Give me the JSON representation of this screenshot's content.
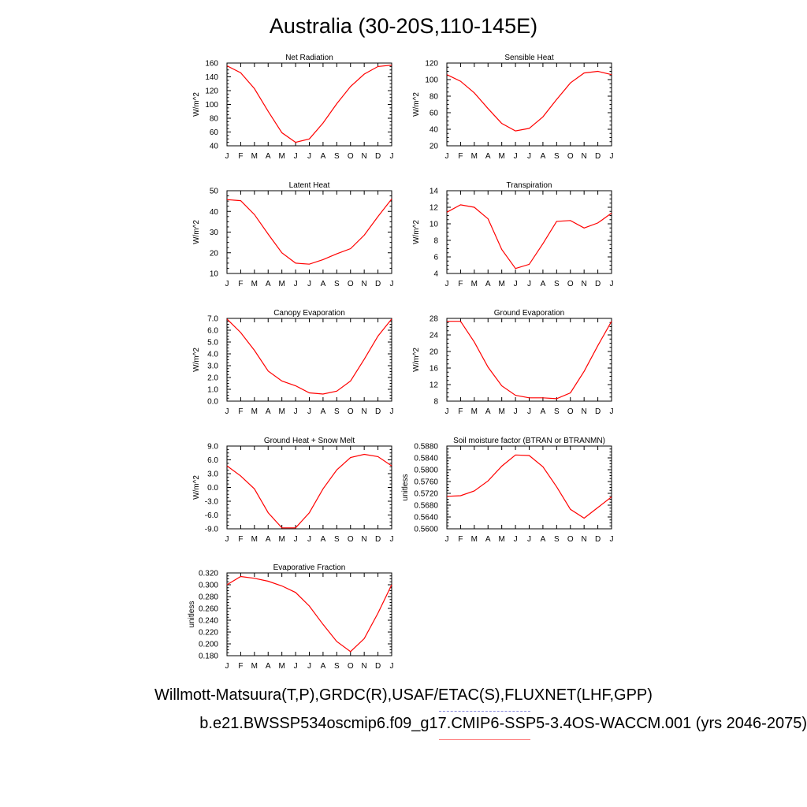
{
  "figure": {
    "title": "Australia (30-20S,110-145E)",
    "legend_obs": "Willmott-Matsuura(T,P),GRDC(R),USAF/ETAC(S),FLUXNET(LHF,GPP)",
    "legend_model": "b.e21.BWSSP534oscmip6.f09_g17.CMIP6-SSP5-3.4OS-WACCM.001 (yrs 2046-2075)",
    "colors": {
      "model_line": "#ff0000",
      "obs_sample": "#8a8adc",
      "model_sample": "#ff8080"
    }
  },
  "chart_data": [
    {
      "id": "net_radiation",
      "type": "line",
      "title": "Net Radiation",
      "ylabel": "W/m^2",
      "categories": [
        "J",
        "F",
        "M",
        "A",
        "M",
        "J",
        "J",
        "A",
        "S",
        "O",
        "N",
        "D",
        "J"
      ],
      "values": [
        156,
        146,
        123,
        90,
        59,
        45,
        50,
        73,
        101,
        126,
        144,
        155,
        157
      ],
      "ylim": [
        40,
        160
      ],
      "yticks": [
        40,
        60,
        80,
        100,
        120,
        140,
        160
      ],
      "ytick_labels": [
        "40",
        "60",
        "80",
        "100",
        "120",
        "140",
        "160"
      ]
    },
    {
      "id": "sensible_heat",
      "type": "line",
      "title": "Sensible Heat",
      "ylabel": "W/m^2",
      "categories": [
        "J",
        "F",
        "M",
        "A",
        "M",
        "J",
        "J",
        "A",
        "S",
        "O",
        "N",
        "D",
        "J"
      ],
      "values": [
        106,
        98,
        84,
        65,
        47,
        38,
        41,
        55,
        76,
        96,
        108,
        110,
        106
      ],
      "ylim": [
        20,
        120
      ],
      "yticks": [
        20,
        40,
        60,
        80,
        100,
        120
      ],
      "ytick_labels": [
        "20",
        "40",
        "60",
        "80",
        "100",
        "120"
      ]
    },
    {
      "id": "latent_heat",
      "type": "line",
      "title": "Latent Heat",
      "ylabel": "W/m^2",
      "categories": [
        "J",
        "F",
        "M",
        "A",
        "M",
        "J",
        "J",
        "A",
        "S",
        "O",
        "N",
        "D",
        "J"
      ],
      "values": [
        45.7,
        45.2,
        38.5,
        29.0,
        20.0,
        15.0,
        14.5,
        16.7,
        19.5,
        22.0,
        28.5,
        37.5,
        46.0
      ],
      "ylim": [
        10,
        50
      ],
      "yticks": [
        10,
        20,
        30,
        40,
        50
      ],
      "ytick_labels": [
        "10",
        "20",
        "30",
        "40",
        "50"
      ]
    },
    {
      "id": "transpiration",
      "type": "line",
      "title": "Transpiration",
      "ylabel": "W/m^2",
      "categories": [
        "J",
        "F",
        "M",
        "A",
        "M",
        "J",
        "J",
        "A",
        "S",
        "O",
        "N",
        "D",
        "J"
      ],
      "values": [
        11.4,
        12.3,
        12.0,
        10.6,
        6.9,
        4.6,
        5.1,
        7.6,
        10.3,
        10.4,
        9.5,
        10.1,
        11.3
      ],
      "ylim": [
        4,
        14
      ],
      "yticks": [
        4,
        6,
        8,
        10,
        12,
        14
      ],
      "ytick_labels": [
        "4",
        "6",
        "8",
        "10",
        "12",
        "14"
      ]
    },
    {
      "id": "canopy_evaporation",
      "type": "line",
      "title": "Canopy Evaporation",
      "ylabel": "W/m^2",
      "categories": [
        "J",
        "F",
        "M",
        "A",
        "M",
        "J",
        "J",
        "A",
        "S",
        "O",
        "N",
        "D",
        "J"
      ],
      "values": [
        6.95,
        5.8,
        4.3,
        2.55,
        1.7,
        1.3,
        0.7,
        0.6,
        0.85,
        1.7,
        3.55,
        5.5,
        6.95
      ],
      "ylim": [
        0,
        7
      ],
      "yticks": [
        0,
        1,
        2,
        3,
        4,
        5,
        6,
        7
      ],
      "ytick_labels": [
        "0.0",
        "1.0",
        "2.0",
        "3.0",
        "4.0",
        "5.0",
        "6.0",
        "7.0"
      ]
    },
    {
      "id": "ground_evaporation",
      "type": "line",
      "title": "Ground Evaporation",
      "ylabel": "W/m^2",
      "categories": [
        "J",
        "F",
        "M",
        "A",
        "M",
        "J",
        "J",
        "A",
        "S",
        "O",
        "N",
        "D",
        "J"
      ],
      "values": [
        27.3,
        27.3,
        22.3,
        16.2,
        11.7,
        9.4,
        8.8,
        8.8,
        8.6,
        10.0,
        15.2,
        21.4,
        27.3
      ],
      "ylim": [
        8,
        28
      ],
      "yticks": [
        8,
        12,
        16,
        20,
        24,
        28
      ],
      "ytick_labels": [
        "8",
        "12",
        "16",
        "20",
        "24",
        "28"
      ]
    },
    {
      "id": "ground_heat_snow_melt",
      "type": "line",
      "title": "Ground Heat + Snow Melt",
      "ylabel": "W/m^2",
      "categories": [
        "J",
        "F",
        "M",
        "A",
        "M",
        "J",
        "J",
        "A",
        "S",
        "O",
        "N",
        "D",
        "J"
      ],
      "values": [
        4.7,
        2.5,
        -0.3,
        -5.5,
        -8.8,
        -8.8,
        -5.5,
        -0.3,
        3.8,
        6.5,
        7.2,
        6.7,
        4.7
      ],
      "ylim": [
        -9,
        9
      ],
      "yticks": [
        -9,
        -6,
        -3,
        0,
        3,
        6,
        9
      ],
      "ytick_labels": [
        "-9.0",
        "-6.0",
        "-3.0",
        "0.0",
        "3.0",
        "6.0",
        "9.0"
      ]
    },
    {
      "id": "soil_moisture_factor",
      "type": "line",
      "title": "Soil moisture factor (BTRAN or BTRANMN)",
      "ylabel": "unitless",
      "categories": [
        "J",
        "F",
        "M",
        "A",
        "M",
        "J",
        "J",
        "A",
        "S",
        "O",
        "N",
        "D",
        "J"
      ],
      "values": [
        0.571,
        0.5712,
        0.5728,
        0.5762,
        0.5812,
        0.585,
        0.5848,
        0.581,
        0.5742,
        0.5666,
        0.5636,
        0.5672,
        0.5708
      ],
      "ylim": [
        0.56,
        0.588
      ],
      "yticks": [
        0.56,
        0.564,
        0.568,
        0.572,
        0.576,
        0.58,
        0.584,
        0.588
      ],
      "ytick_labels": [
        "0.5600",
        "0.5640",
        "0.5680",
        "0.5720",
        "0.5760",
        "0.5800",
        "0.5840",
        "0.5880"
      ]
    },
    {
      "id": "evaporative_fraction",
      "type": "line",
      "title": "Evaporative Fraction",
      "ylabel": "unitless",
      "categories": [
        "J",
        "F",
        "M",
        "A",
        "M",
        "J",
        "J",
        "A",
        "S",
        "O",
        "N",
        "D",
        "J"
      ],
      "values": [
        0.3,
        0.314,
        0.311,
        0.306,
        0.298,
        0.287,
        0.264,
        0.233,
        0.204,
        0.187,
        0.209,
        0.252,
        0.3
      ],
      "ylim": [
        0.18,
        0.32
      ],
      "yticks": [
        0.18,
        0.2,
        0.22,
        0.24,
        0.26,
        0.28,
        0.3,
        0.32
      ],
      "ytick_labels": [
        "0.180",
        "0.200",
        "0.220",
        "0.240",
        "0.260",
        "0.280",
        "0.300",
        "0.320"
      ]
    }
  ]
}
